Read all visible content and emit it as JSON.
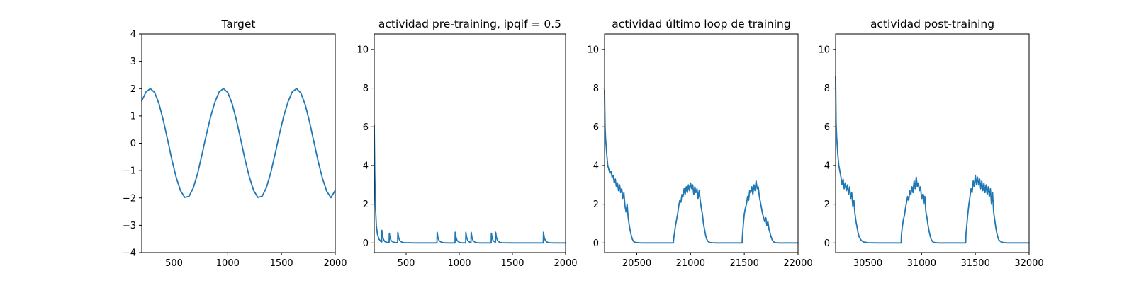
{
  "colors": {
    "line": "#1f77b4",
    "axes": "#000000",
    "background": "#ffffff"
  },
  "chart_data": [
    {
      "type": "line",
      "title": "Target",
      "xlabel": "",
      "ylabel": "",
      "xlim": [
        200,
        2000
      ],
      "ylim": [
        -4,
        4
      ],
      "xticks": [
        500,
        1000,
        1500,
        2000
      ],
      "yticks": [
        -4,
        -3,
        -2,
        -1,
        0,
        1,
        2,
        3,
        4
      ],
      "ytick_labels": [
        "−4",
        "−3",
        "−2",
        "−1",
        "0",
        "1",
        "2",
        "3",
        "4"
      ],
      "grid": false,
      "series": [
        {
          "x": [
            200,
            240,
            280,
            320,
            360,
            400,
            440,
            480,
            520,
            560,
            600,
            640,
            680,
            720,
            760,
            800,
            840,
            880,
            920,
            960,
            1000,
            1040,
            1080,
            1120,
            1160,
            1200,
            1240,
            1280,
            1320,
            1360,
            1400,
            1440,
            1480,
            1520,
            1560,
            1600,
            1640,
            1680,
            1720,
            1760,
            1800,
            1840,
            1880,
            1920,
            1960,
            2000
          ],
          "y": [
            1.55,
            1.88,
            2.0,
            1.86,
            1.45,
            0.85,
            0.14,
            -0.6,
            -1.24,
            -1.73,
            -1.98,
            -1.94,
            -1.63,
            -1.1,
            -0.42,
            0.3,
            0.96,
            1.5,
            1.88,
            2.0,
            1.86,
            1.46,
            0.86,
            0.15,
            -0.58,
            -1.22,
            -1.72,
            -1.98,
            -1.94,
            -1.62,
            -1.08,
            -0.4,
            0.32,
            0.98,
            1.51,
            1.88,
            2.0,
            1.84,
            1.42,
            0.8,
            0.08,
            -0.64,
            -1.27,
            -1.75,
            -1.99,
            -1.72
          ]
        }
      ]
    },
    {
      "type": "line",
      "title": "actividad pre-training, ipqif = 0.5",
      "xlabel": "",
      "ylabel": "",
      "xlim": [
        200,
        2000
      ],
      "ylim": [
        -0.5,
        10.8
      ],
      "xticks": [
        500,
        1000,
        1500,
        2000
      ],
      "yticks": [
        0,
        2,
        4,
        6,
        8,
        10
      ],
      "grid": false,
      "series": [
        {
          "x": [
            200,
            205,
            212,
            220,
            230,
            245,
            260,
            270,
            272,
            280,
            290,
            300,
            320,
            340,
            342,
            350,
            360,
            380,
            400,
            420,
            422,
            430,
            440,
            460,
            480,
            500,
            600,
            700,
            790,
            792,
            800,
            810,
            830,
            850,
            900,
            960,
            962,
            970,
            980,
            1000,
            1020,
            1060,
            1062,
            1070,
            1080,
            1100,
            1110,
            1112,
            1120,
            1130,
            1150,
            1170,
            1200,
            1300,
            1302,
            1310,
            1320,
            1340,
            1342,
            1350,
            1360,
            1380,
            1400,
            1500,
            1600,
            1700,
            1790,
            1792,
            1800,
            1810,
            1830,
            1850,
            1900,
            2000
          ],
          "y": [
            6.1,
            3.6,
            1.8,
            0.9,
            0.45,
            0.2,
            0.08,
            0.05,
            0.65,
            0.3,
            0.15,
            0.07,
            0.03,
            0.02,
            0.5,
            0.24,
            0.11,
            0.04,
            0.02,
            0.01,
            0.55,
            0.27,
            0.12,
            0.04,
            0.01,
            0.01,
            0.0,
            0.0,
            0.0,
            0.55,
            0.27,
            0.12,
            0.04,
            0.01,
            0.0,
            0.0,
            0.55,
            0.27,
            0.12,
            0.03,
            0.01,
            0.0,
            0.55,
            0.27,
            0.12,
            0.03,
            0.01,
            0.55,
            0.27,
            0.12,
            0.03,
            0.01,
            0.0,
            0.0,
            0.5,
            0.24,
            0.11,
            0.03,
            0.55,
            0.27,
            0.12,
            0.03,
            0.01,
            0.0,
            0.0,
            0.0,
            0.0,
            0.55,
            0.27,
            0.12,
            0.03,
            0.01,
            0.0,
            0.0
          ]
        }
      ]
    },
    {
      "type": "line",
      "title": "actividad último loop de training",
      "xlabel": "",
      "ylabel": "",
      "xlim": [
        20200,
        22000
      ],
      "ylim": [
        -0.5,
        10.8
      ],
      "xticks": [
        20500,
        21000,
        21500,
        22000
      ],
      "yticks": [
        0,
        2,
        4,
        6,
        8,
        10
      ],
      "grid": false,
      "series": [
        {
          "x": [
            20200,
            20205,
            20210,
            20220,
            20230,
            20240,
            20250,
            20260,
            20270,
            20280,
            20290,
            20300,
            20310,
            20320,
            20330,
            20340,
            20350,
            20360,
            20370,
            20380,
            20390,
            20400,
            20410,
            20420,
            20430,
            20440,
            20450,
            20460,
            20470,
            20480,
            20500,
            20520,
            20550,
            20600,
            20700,
            20800,
            20840,
            20842,
            20850,
            20860,
            20870,
            20880,
            20890,
            20900,
            20910,
            20920,
            20930,
            20940,
            20950,
            20960,
            20970,
            20980,
            20990,
            21000,
            21010,
            21020,
            21030,
            21040,
            21050,
            21060,
            21070,
            21080,
            21090,
            21100,
            21110,
            21120,
            21130,
            21140,
            21150,
            21160,
            21170,
            21180,
            21200,
            21250,
            21300,
            21400,
            21480,
            21482,
            21490,
            21500,
            21510,
            21520,
            21530,
            21540,
            21550,
            21560,
            21570,
            21580,
            21590,
            21600,
            21610,
            21620,
            21630,
            21640,
            21650,
            21660,
            21670,
            21680,
            21690,
            21700,
            21710,
            21720,
            21730,
            21740,
            21750,
            21760,
            21770,
            21780,
            21790,
            21800,
            21820,
            21850,
            21900,
            22000
          ],
          "y": [
            7.9,
            6.0,
            5.4,
            4.6,
            4.0,
            3.8,
            3.6,
            3.7,
            3.4,
            3.5,
            3.1,
            3.3,
            2.9,
            3.1,
            2.7,
            3.0,
            2.6,
            2.8,
            2.3,
            2.6,
            1.9,
            1.6,
            2.0,
            1.3,
            0.9,
            0.6,
            0.35,
            0.18,
            0.08,
            0.04,
            0.02,
            0.01,
            0.0,
            0.0,
            0.0,
            0.0,
            0.0,
            0.15,
            0.5,
            0.9,
            1.2,
            1.5,
            1.9,
            2.2,
            2.1,
            2.5,
            2.4,
            2.8,
            2.5,
            2.9,
            2.6,
            3.0,
            2.7,
            3.1,
            2.8,
            3.0,
            2.5,
            2.9,
            2.6,
            2.8,
            2.3,
            2.7,
            2.2,
            1.8,
            1.5,
            1.0,
            0.7,
            0.4,
            0.2,
            0.1,
            0.05,
            0.02,
            0.01,
            0.0,
            0.0,
            0.0,
            0.0,
            0.3,
            0.9,
            1.5,
            1.8,
            2.0,
            2.4,
            2.2,
            2.7,
            2.6,
            2.9,
            2.5,
            3.0,
            2.7,
            3.2,
            2.8,
            2.9,
            2.4,
            2.1,
            1.8,
            1.5,
            1.3,
            1.1,
            1.3,
            0.9,
            1.1,
            0.7,
            0.5,
            0.3,
            0.15,
            0.07,
            0.03,
            0.01,
            0.01,
            0.0,
            0.0,
            0.0,
            0.0
          ]
        }
      ]
    },
    {
      "type": "line",
      "title": "actividad post-training",
      "xlabel": "",
      "ylabel": "",
      "xlim": [
        30200,
        32000
      ],
      "ylim": [
        -0.5,
        10.8
      ],
      "xticks": [
        30500,
        31000,
        31500,
        32000
      ],
      "yticks": [
        0,
        2,
        4,
        6,
        8,
        10
      ],
      "grid": false,
      "series": [
        {
          "x": [
            30200,
            30205,
            30210,
            30220,
            30230,
            30240,
            30250,
            30260,
            30270,
            30280,
            30290,
            30300,
            30310,
            30320,
            30330,
            30340,
            30350,
            30360,
            30370,
            30380,
            30390,
            30400,
            30410,
            30420,
            30440,
            30460,
            30500,
            30600,
            30700,
            30800,
            30810,
            30812,
            30820,
            30830,
            30840,
            30850,
            30860,
            30870,
            30880,
            30890,
            30900,
            30910,
            30920,
            30930,
            30940,
            30950,
            30960,
            30970,
            30980,
            30990,
            31000,
            31010,
            31020,
            31030,
            31040,
            31050,
            31060,
            31070,
            31080,
            31090,
            31100,
            31110,
            31120,
            31140,
            31160,
            31200,
            31300,
            31400,
            31410,
            31412,
            31420,
            31430,
            31440,
            31450,
            31460,
            31470,
            31480,
            31490,
            31500,
            31510,
            31520,
            31530,
            31540,
            31550,
            31560,
            31570,
            31580,
            31590,
            31600,
            31610,
            31620,
            31630,
            31640,
            31650,
            31660,
            31670,
            31680,
            31690,
            31700,
            31710,
            31720,
            31740,
            31760,
            31800,
            31900,
            32000
          ],
          "y": [
            8.6,
            6.2,
            5.5,
            4.6,
            4.0,
            3.7,
            3.4,
            3.0,
            3.3,
            2.8,
            3.1,
            2.7,
            3.0,
            2.5,
            2.9,
            2.3,
            2.6,
            1.9,
            2.2,
            1.5,
            1.1,
            0.8,
            0.5,
            0.3,
            0.12,
            0.05,
            0.01,
            0.0,
            0.0,
            0.0,
            0.0,
            0.4,
            0.8,
            1.2,
            1.4,
            1.8,
            2.1,
            2.4,
            2.2,
            2.7,
            2.5,
            2.9,
            2.6,
            3.2,
            2.8,
            3.4,
            2.9,
            3.1,
            2.7,
            2.9,
            2.3,
            2.5,
            2.0,
            2.4,
            1.6,
            1.3,
            0.9,
            0.6,
            0.35,
            0.18,
            0.08,
            0.04,
            0.02,
            0.01,
            0.0,
            0.0,
            0.0,
            0.0,
            0.0,
            0.4,
            0.9,
            1.5,
            2.0,
            2.4,
            2.8,
            2.6,
            3.2,
            2.9,
            3.5,
            3.0,
            3.4,
            3.0,
            3.3,
            2.8,
            3.2,
            2.7,
            3.1,
            2.6,
            3.0,
            2.5,
            2.9,
            2.4,
            2.8,
            2.0,
            2.6,
            1.6,
            1.2,
            0.8,
            0.5,
            0.28,
            0.14,
            0.05,
            0.02,
            0.0,
            0.0,
            0.0
          ]
        }
      ]
    }
  ]
}
